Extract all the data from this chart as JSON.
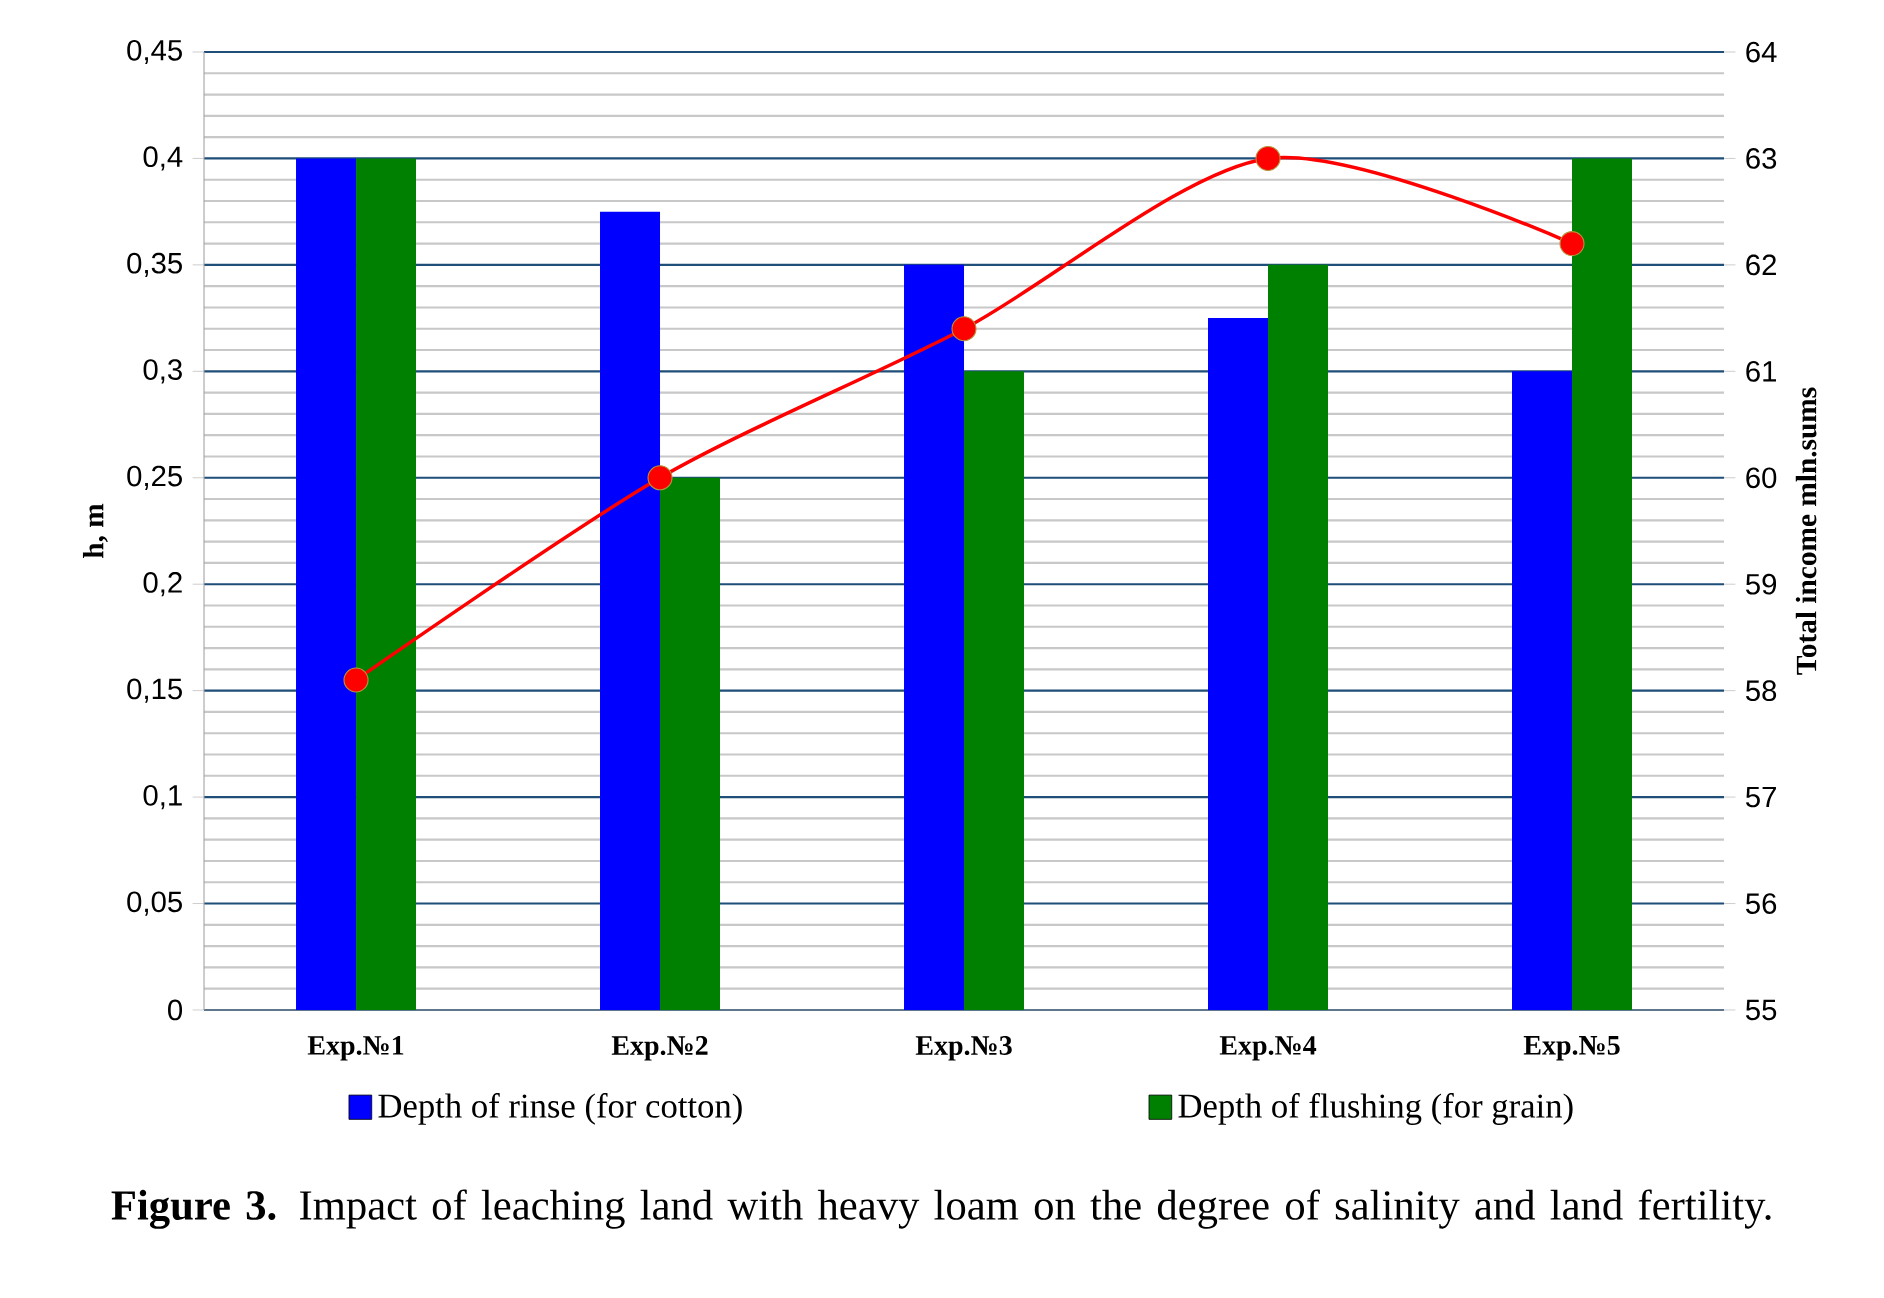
{
  "chart_data": {
    "type": "bar",
    "categories": [
      "Exp.№1",
      "Exp.№2",
      "Exp.№3",
      "Exp.№4",
      "Exp.№5"
    ],
    "series": [
      {
        "name": "Depth of rinse (for cotton)",
        "color": "#0000ff",
        "values": [
          0.4,
          0.375,
          0.35,
          0.325,
          0.3
        ]
      },
      {
        "name": "Depth of flushing (for grain)",
        "color": "#008000",
        "values": [
          0.4,
          0.25,
          0.3,
          0.35,
          0.4
        ]
      },
      {
        "type": "line",
        "axis": "y2",
        "color": "#ff0000",
        "values": [
          58.1,
          60.0,
          61.4,
          63.0,
          62.2
        ]
      }
    ],
    "marker": "circle",
    "ylabel": "h, m",
    "y2label": "Total income mln.sums",
    "ylim": [
      0,
      0.45
    ],
    "yticks": [
      0,
      {
        "value": 0.05,
        "label": "0,05"
      },
      {
        "value": 0.1,
        "label": "0,1"
      },
      {
        "value": 0.15,
        "label": "0,15"
      },
      {
        "value": 0.2,
        "label": "0,2"
      },
      {
        "value": 0.25,
        "label": "0,25"
      },
      {
        "value": 0.3,
        "label": "0,3"
      },
      {
        "value": 0.35,
        "label": "0,35"
      },
      {
        "value": 0.4,
        "label": "0,4"
      },
      {
        "value": 0.45,
        "label": "0,45"
      }
    ],
    "y2lim": [
      55,
      64
    ],
    "y2ticks": [
      55,
      56,
      57,
      58,
      59,
      60,
      61,
      62,
      63,
      64
    ],
    "grid": "y",
    "legend": "bottom",
    "annotations": [
      "**Figure 3.** Impact of leaching land with heavy loam on the degree of salinity and land fertility."
    ]
  }
}
